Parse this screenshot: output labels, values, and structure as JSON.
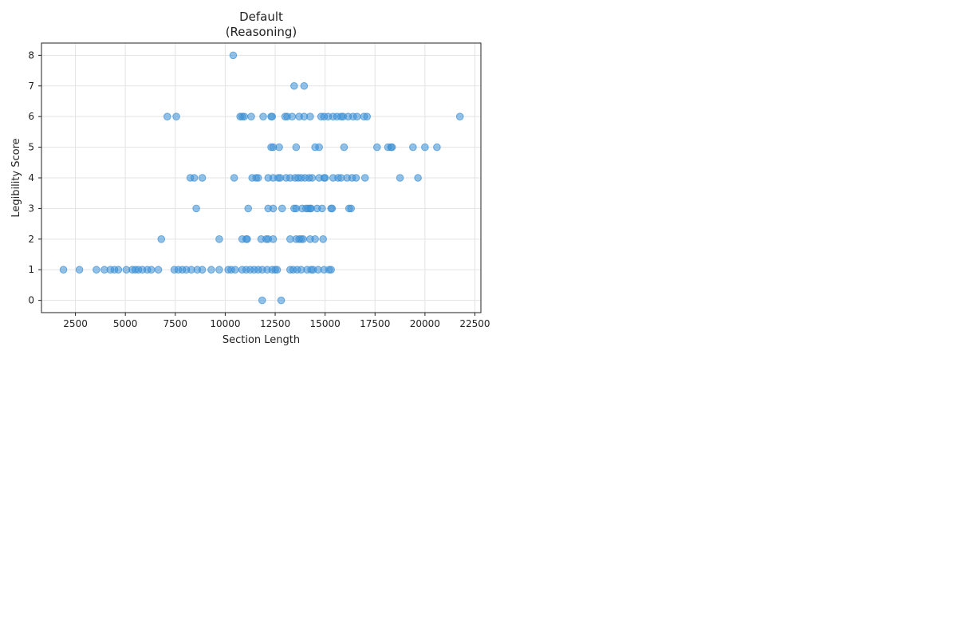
{
  "chart_data": {
    "type": "scatter",
    "title_lines": [
      "Default",
      "(Reasoning)"
    ],
    "xlabel": "Section Length",
    "ylabel": "Legibility Score",
    "xlim": [
      800,
      22800
    ],
    "ylim": [
      -0.4,
      8.4
    ],
    "x_ticks": [
      2500,
      5000,
      7500,
      10000,
      12500,
      15000,
      17500,
      20000,
      22500
    ],
    "y_ticks": [
      0,
      1,
      2,
      3,
      4,
      5,
      6,
      7,
      8
    ],
    "grid": true,
    "color": "#3a8fd6",
    "points": [
      [
        10400,
        8
      ],
      [
        13450,
        7
      ],
      [
        13950,
        7
      ],
      [
        7100,
        6
      ],
      [
        7550,
        6
      ],
      [
        10750,
        6
      ],
      [
        10850,
        6
      ],
      [
        10950,
        6
      ],
      [
        11300,
        6
      ],
      [
        11900,
        6
      ],
      [
        12300,
        6
      ],
      [
        12350,
        6
      ],
      [
        13000,
        6
      ],
      [
        13100,
        6
      ],
      [
        13350,
        6
      ],
      [
        13700,
        6
      ],
      [
        13950,
        6
      ],
      [
        14250,
        6
      ],
      [
        14800,
        6
      ],
      [
        14950,
        6
      ],
      [
        15150,
        6
      ],
      [
        15400,
        6
      ],
      [
        15600,
        6
      ],
      [
        15800,
        6
      ],
      [
        15900,
        6
      ],
      [
        16150,
        6
      ],
      [
        16400,
        6
      ],
      [
        16600,
        6
      ],
      [
        16950,
        6
      ],
      [
        17100,
        6
      ],
      [
        21750,
        6
      ],
      [
        12300,
        5
      ],
      [
        12400,
        5
      ],
      [
        12700,
        5
      ],
      [
        13550,
        5
      ],
      [
        14500,
        5
      ],
      [
        14700,
        5
      ],
      [
        15950,
        5
      ],
      [
        17600,
        5
      ],
      [
        18150,
        5
      ],
      [
        18300,
        5
      ],
      [
        18350,
        5
      ],
      [
        19400,
        5
      ],
      [
        20000,
        5
      ],
      [
        20600,
        5
      ],
      [
        8250,
        4
      ],
      [
        8450,
        4
      ],
      [
        8850,
        4
      ],
      [
        10450,
        4
      ],
      [
        11350,
        4
      ],
      [
        11550,
        4
      ],
      [
        11650,
        4
      ],
      [
        12150,
        4
      ],
      [
        12400,
        4
      ],
      [
        12650,
        4
      ],
      [
        12750,
        4
      ],
      [
        13050,
        4
      ],
      [
        13250,
        4
      ],
      [
        13500,
        4
      ],
      [
        13650,
        4
      ],
      [
        13800,
        4
      ],
      [
        14000,
        4
      ],
      [
        14200,
        4
      ],
      [
        14350,
        4
      ],
      [
        14700,
        4
      ],
      [
        14950,
        4
      ],
      [
        15000,
        4
      ],
      [
        15400,
        4
      ],
      [
        15650,
        4
      ],
      [
        15800,
        4
      ],
      [
        16100,
        4
      ],
      [
        16350,
        4
      ],
      [
        16550,
        4
      ],
      [
        17000,
        4
      ],
      [
        18750,
        4
      ],
      [
        19650,
        4
      ],
      [
        8550,
        3
      ],
      [
        11150,
        3
      ],
      [
        12150,
        3
      ],
      [
        12400,
        3
      ],
      [
        12850,
        3
      ],
      [
        13450,
        3
      ],
      [
        13550,
        3
      ],
      [
        13850,
        3
      ],
      [
        14050,
        3
      ],
      [
        14150,
        3
      ],
      [
        14250,
        3
      ],
      [
        14300,
        3
      ],
      [
        14600,
        3
      ],
      [
        14850,
        3
      ],
      [
        15300,
        3
      ],
      [
        15350,
        3
      ],
      [
        16200,
        3
      ],
      [
        16300,
        3
      ],
      [
        6800,
        2
      ],
      [
        9700,
        2
      ],
      [
        10850,
        2
      ],
      [
        11050,
        2
      ],
      [
        11100,
        2
      ],
      [
        11800,
        2
      ],
      [
        12050,
        2
      ],
      [
        12150,
        2
      ],
      [
        12400,
        2
      ],
      [
        13250,
        2
      ],
      [
        13550,
        2
      ],
      [
        13700,
        2
      ],
      [
        13800,
        2
      ],
      [
        13900,
        2
      ],
      [
        14250,
        2
      ],
      [
        14500,
        2
      ],
      [
        14900,
        2
      ],
      [
        1900,
        1
      ],
      [
        2700,
        1
      ],
      [
        3550,
        1
      ],
      [
        3950,
        1
      ],
      [
        4250,
        1
      ],
      [
        4450,
        1
      ],
      [
        4650,
        1
      ],
      [
        5050,
        1
      ],
      [
        5350,
        1
      ],
      [
        5500,
        1
      ],
      [
        5650,
        1
      ],
      [
        5850,
        1
      ],
      [
        6100,
        1
      ],
      [
        6300,
        1
      ],
      [
        6650,
        1
      ],
      [
        7450,
        1
      ],
      [
        7650,
        1
      ],
      [
        7850,
        1
      ],
      [
        8050,
        1
      ],
      [
        8300,
        1
      ],
      [
        8600,
        1
      ],
      [
        8850,
        1
      ],
      [
        9300,
        1
      ],
      [
        9700,
        1
      ],
      [
        10150,
        1
      ],
      [
        10300,
        1
      ],
      [
        10500,
        1
      ],
      [
        10850,
        1
      ],
      [
        11050,
        1
      ],
      [
        11250,
        1
      ],
      [
        11450,
        1
      ],
      [
        11650,
        1
      ],
      [
        11850,
        1
      ],
      [
        12100,
        1
      ],
      [
        12350,
        1
      ],
      [
        12500,
        1
      ],
      [
        12600,
        1
      ],
      [
        13250,
        1
      ],
      [
        13400,
        1
      ],
      [
        13600,
        1
      ],
      [
        13800,
        1
      ],
      [
        14100,
        1
      ],
      [
        14300,
        1
      ],
      [
        14400,
        1
      ],
      [
        14650,
        1
      ],
      [
        14950,
        1
      ],
      [
        15200,
        1
      ],
      [
        15300,
        1
      ],
      [
        11850,
        0
      ],
      [
        12800,
        0
      ]
    ]
  }
}
